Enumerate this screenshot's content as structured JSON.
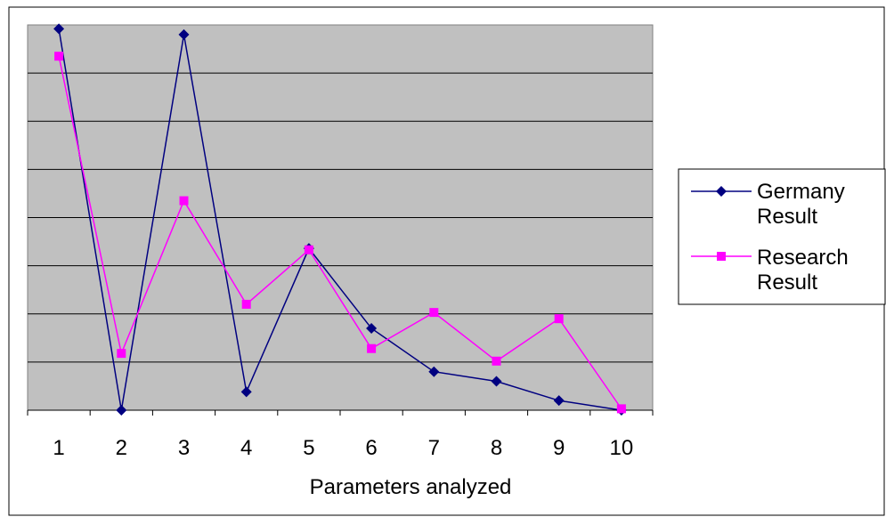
{
  "chart_data": {
    "type": "line",
    "title": "",
    "xlabel": "Parameters analyzed",
    "ylabel": "",
    "categories": [
      "1",
      "2",
      "3",
      "4",
      "5",
      "6",
      "7",
      "8",
      "9",
      "10"
    ],
    "ylim": [
      0,
      8
    ],
    "grid": true,
    "legend_position": "right",
    "series": [
      {
        "name": "Germany Result",
        "color": "#000080",
        "marker": "diamond",
        "values": [
          7.92,
          0.0,
          7.8,
          0.38,
          3.36,
          1.7,
          0.8,
          0.6,
          0.2,
          0.0
        ]
      },
      {
        "name": "Research Result",
        "color": "#ff00ff",
        "marker": "square",
        "values": [
          7.35,
          1.18,
          4.35,
          2.2,
          3.33,
          1.28,
          2.03,
          1.02,
          1.9,
          0.03
        ]
      }
    ]
  },
  "legend": {
    "items": [
      {
        "line1": "Germany",
        "line2": "Result"
      },
      {
        "line1": "Research",
        "line2": "Result"
      }
    ]
  }
}
